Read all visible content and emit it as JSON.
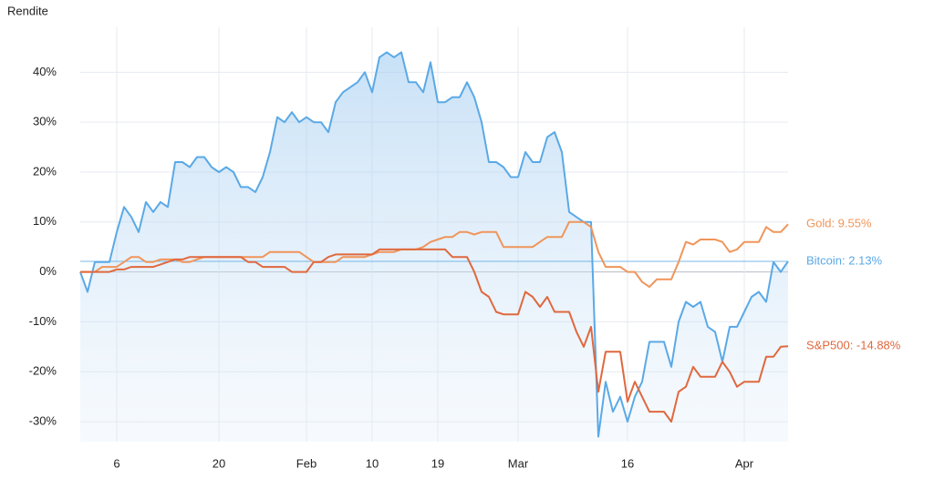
{
  "chart_data": {
    "type": "line",
    "y_label": "Rendite",
    "categories": [
      null,
      null,
      null,
      null,
      null,
      "6",
      null,
      null,
      null,
      null,
      null,
      null,
      null,
      null,
      null,
      null,
      null,
      null,
      null,
      "20",
      null,
      null,
      null,
      null,
      null,
      null,
      null,
      null,
      null,
      null,
      null,
      "Feb",
      null,
      null,
      null,
      null,
      null,
      null,
      null,
      null,
      "10",
      null,
      null,
      null,
      null,
      null,
      null,
      null,
      null,
      "19",
      null,
      null,
      null,
      null,
      null,
      null,
      null,
      null,
      null,
      null,
      "Mar",
      null,
      null,
      null,
      null,
      null,
      null,
      null,
      null,
      null,
      null,
      null,
      null,
      null,
      null,
      "16",
      null,
      null,
      null,
      null,
      null,
      null,
      null,
      null,
      null,
      null,
      null,
      null,
      null,
      null,
      null,
      "Apr",
      null,
      null,
      null,
      null,
      null,
      null
    ],
    "series": [
      {
        "name": "Bitcoin: 2.13%",
        "color": "#5aa9e6",
        "area": true,
        "values": [
          0,
          -4,
          2,
          2,
          2,
          8,
          13,
          11,
          8,
          14,
          12,
          14,
          13,
          22,
          22,
          21,
          23,
          23,
          21,
          20,
          21,
          20,
          17,
          17,
          16,
          19,
          24,
          31,
          30,
          32,
          30,
          31,
          30,
          30,
          28,
          34,
          36,
          37,
          38,
          40,
          36,
          43,
          44,
          43,
          44,
          38,
          38,
          36,
          42,
          34,
          34,
          35,
          35,
          38,
          35,
          30,
          22,
          22,
          21,
          19,
          19,
          24,
          22,
          22,
          27,
          28,
          24,
          12,
          11,
          10,
          10,
          -33,
          -22,
          -28,
          -25,
          -30,
          -25,
          -22,
          -14,
          -14,
          -14,
          -19,
          -10,
          -6,
          -7,
          -6,
          -11,
          -12,
          -18,
          -11,
          -11,
          -8,
          -5,
          -4,
          -6,
          2,
          0,
          2.13
        ]
      },
      {
        "name": "Gold: 9.55%",
        "color": "#f0955a",
        "values": [
          0,
          0,
          0,
          1,
          1,
          1,
          2,
          3,
          3,
          2,
          2,
          2.5,
          2.5,
          2.5,
          2,
          2,
          2.5,
          3,
          3,
          3,
          3,
          3,
          3,
          3,
          3,
          3,
          4,
          4,
          4,
          4,
          4,
          3,
          2,
          2,
          2,
          2,
          3,
          3,
          3,
          3,
          3.5,
          4,
          4,
          4,
          4.5,
          4.5,
          4.5,
          5,
          6,
          6.5,
          7,
          7,
          8,
          8,
          7.5,
          8,
          8,
          8,
          5,
          5,
          5,
          5,
          5,
          6,
          7,
          7,
          7,
          10,
          10,
          10,
          9,
          4,
          1,
          1,
          1,
          0,
          0,
          -2,
          -3,
          -1.5,
          -1.5,
          -1.5,
          2,
          6,
          5.5,
          6.5,
          6.5,
          6.5,
          6,
          4,
          4.5,
          6,
          6,
          6,
          9,
          8,
          8,
          9.55
        ]
      },
      {
        "name": "S&P500: -14.88%",
        "color": "#e0683e",
        "values": [
          0,
          0,
          0,
          0,
          0,
          0.5,
          0.5,
          1,
          1,
          1,
          1,
          1.5,
          2,
          2.5,
          2.5,
          3,
          3,
          3,
          3,
          3,
          3,
          3,
          3,
          2,
          2,
          1,
          1,
          1,
          1,
          0,
          0,
          0,
          2,
          2,
          3,
          3.5,
          3.5,
          3.5,
          3.5,
          3.5,
          3.5,
          4.5,
          4.5,
          4.5,
          4.5,
          4.5,
          4.5,
          4.5,
          4.5,
          4.5,
          4.5,
          3,
          3,
          3,
          0,
          -4,
          -5,
          -8,
          -8.5,
          -8.5,
          -8.5,
          -4,
          -5,
          -7,
          -5,
          -8,
          -8,
          -8,
          -12,
          -15,
          -11,
          -24,
          -16,
          -16,
          -16,
          -26,
          -22,
          -25,
          -28,
          -28,
          -28,
          -30,
          -24,
          -23,
          -19,
          -21,
          -21,
          -21,
          -18,
          -20,
          -23,
          -22,
          -22,
          -22,
          -17,
          -17,
          -15,
          -14.88
        ]
      }
    ],
    "ylim": [
      -34,
      49
    ],
    "yticks": [
      {
        "value": -30,
        "label": "-30%"
      },
      {
        "value": -20,
        "label": "-20%"
      },
      {
        "value": -10,
        "label": "-10%"
      },
      {
        "value": 0,
        "label": "0%"
      },
      {
        "value": 10,
        "label": "10%"
      },
      {
        "value": 20,
        "label": "20%"
      },
      {
        "value": 30,
        "label": "30%"
      },
      {
        "value": 40,
        "label": "40%"
      }
    ],
    "grid": true
  }
}
